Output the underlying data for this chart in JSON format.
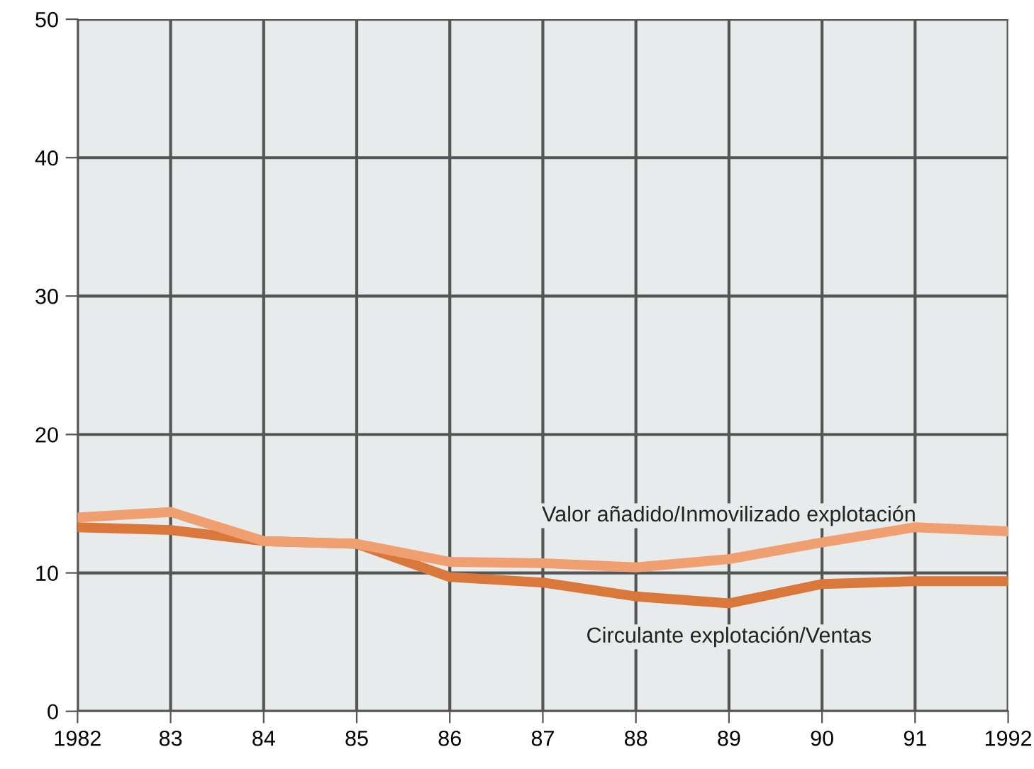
{
  "chart_data": {
    "type": "line",
    "x": [
      1982,
      1983,
      1984,
      1985,
      1986,
      1987,
      1988,
      1989,
      1990,
      1991,
      1992
    ],
    "series": [
      {
        "name": "Valor añadido/Inmovilizado explotación",
        "color": "#f0a070",
        "values": [
          14.0,
          14.4,
          12.3,
          12.1,
          10.8,
          10.7,
          10.4,
          11.0,
          12.2,
          13.3,
          13.0
        ]
      },
      {
        "name": "Circulante explotación/Ventas",
        "color": "#d9783a",
        "values": [
          13.3,
          13.1,
          12.3,
          12.1,
          9.7,
          9.3,
          8.3,
          7.8,
          9.2,
          9.4,
          9.4
        ]
      }
    ],
    "xlim": [
      1982,
      1992
    ],
    "xticks": [
      1982,
      {
        "value": 1983,
        "label": "83"
      },
      {
        "value": 1984,
        "label": "84"
      },
      {
        "value": 1985,
        "label": "85"
      },
      {
        "value": 1986,
        "label": "86"
      },
      {
        "value": 1987,
        "label": "87"
      },
      {
        "value": 1988,
        "label": "88"
      },
      {
        "value": 1989,
        "label": "89"
      },
      {
        "value": 1990,
        "label": "90"
      },
      {
        "value": 1991,
        "label": "91"
      },
      1992
    ],
    "ylim": [
      0,
      50
    ],
    "yticks": [
      0,
      10,
      20,
      30,
      40,
      50
    ],
    "grid": true,
    "legend": false,
    "marker": "none",
    "line_style": "solid"
  }
}
